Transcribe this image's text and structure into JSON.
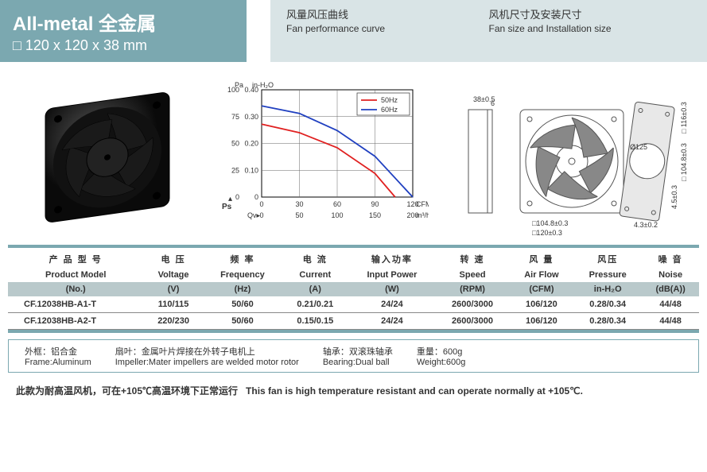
{
  "header": {
    "title_en": "All-metal",
    "title_cn": "全金属",
    "dimensions": "120 x 120 x 38 mm",
    "labels": [
      {
        "cn": "风量风压曲线",
        "en": "Fan performance curve"
      },
      {
        "cn": "风机尺寸及安装尺寸",
        "en": "Fan size and Installation size"
      }
    ]
  },
  "chart": {
    "background": "#ffffff",
    "grid_color": "#666666",
    "axis_color": "#000000",
    "y1_label": "Pa",
    "y2_label": "in-H₂O",
    "y1_ticks": [
      0,
      25,
      50,
      75,
      100
    ],
    "y2_ticks": [
      "0",
      "0.10",
      "0.20",
      "0.30",
      "0.40"
    ],
    "x1_label": "CFM",
    "x2_label": "m³/h",
    "x1_ticks": [
      0,
      30,
      60,
      90,
      120
    ],
    "x2_ticks": [
      0,
      50,
      100,
      150,
      200
    ],
    "ps_label": "Ps",
    "qv_label": "Qv",
    "series": [
      {
        "name": "50Hz",
        "color": "#e02020",
        "points": [
          [
            0,
            68
          ],
          [
            30,
            60
          ],
          [
            60,
            46
          ],
          [
            90,
            22
          ],
          [
            106,
            0
          ]
        ]
      },
      {
        "name": "60Hz",
        "color": "#2040c0",
        "points": [
          [
            0,
            85
          ],
          [
            30,
            78
          ],
          [
            60,
            62
          ],
          [
            90,
            38
          ],
          [
            120,
            0
          ]
        ]
      }
    ],
    "x_max": 120,
    "y_max": 100
  },
  "dimensions_drawing": {
    "labels": [
      "38±0.5",
      "6",
      "Ø125",
      "104.8±0.3",
      "116±0.3",
      "104.8±0.3",
      "120±0.3",
      "4.3±0.2",
      "4.5±0.3"
    ],
    "stroke": "#555"
  },
  "table": {
    "columns_cn": [
      "产 品 型 号",
      "电 压",
      "频 率",
      "电 流",
      "输入功率",
      "转 速",
      "风 量",
      "风压",
      "噪 音"
    ],
    "columns_en": [
      "Product Model",
      "Voltage",
      "Frequency",
      "Current",
      "Input Power",
      "Speed",
      "Air Flow",
      "Pressure",
      "Noise"
    ],
    "columns_unit": [
      "(No.)",
      "(V)",
      "(Hz)",
      "(A)",
      "(W)",
      "(RPM)",
      "(CFM)",
      "in-H₂O",
      "(dB(A))"
    ],
    "rows": [
      [
        "CF.12038HB-A1-T",
        "110/115",
        "50/60",
        "0.21/0.21",
        "24/24",
        "2600/3000",
        "106/120",
        "0.28/0.34",
        "44/48"
      ],
      [
        "CF.12038HB-A2-T",
        "220/230",
        "50/60",
        "0.15/0.15",
        "24/24",
        "2600/3000",
        "106/120",
        "0.28/0.34",
        "44/48"
      ]
    ]
  },
  "info": [
    {
      "cn": "外框：铝合金",
      "en": "Frame:Aluminum"
    },
    {
      "cn": "扇叶：金属叶片焊接在外转子电机上",
      "en": "Impeller:Mater impellers are welded motor rotor"
    },
    {
      "cn": "轴承：双滚珠轴承",
      "en": "Bearing:Dual ball"
    },
    {
      "cn": "重量：600g",
      "en": "Weight:600g"
    }
  ],
  "note": {
    "cn": "此款为耐高温风机，可在+105℃高温环境下正常运行",
    "en": "This fan is high temperature resistant and can operate normally at +105℃."
  }
}
